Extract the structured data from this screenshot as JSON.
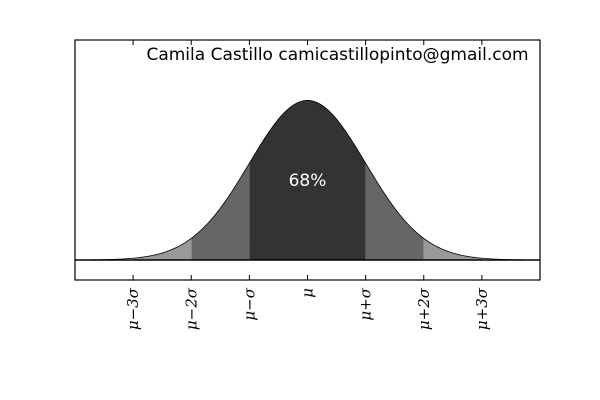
{
  "chart_data": {
    "type": "area",
    "title": "Camila Castillo camicastillopinto@gmail.com",
    "distribution": {
      "mean": 0,
      "sd": 1
    },
    "xlim": [
      -4,
      4
    ],
    "ylim": [
      -0.05,
      0.55
    ],
    "xlabel": "",
    "ylabel": "",
    "grid": false,
    "xticks": [
      {
        "value": -3,
        "label": "μ−3σ"
      },
      {
        "value": -2,
        "label": "μ−2σ"
      },
      {
        "value": -1,
        "label": "μ−σ"
      },
      {
        "value": 0,
        "label": "μ"
      },
      {
        "value": 1,
        "label": "μ+σ"
      },
      {
        "value": 2,
        "label": "μ+2σ"
      },
      {
        "value": 3,
        "label": "μ+3σ"
      }
    ],
    "bands": [
      {
        "from": -1,
        "to": 1,
        "color": "#333333"
      },
      {
        "from": -2,
        "to": -1,
        "color": "#666666"
      },
      {
        "from": 1,
        "to": 2,
        "color": "#666666"
      },
      {
        "from": -3,
        "to": -2,
        "color": "#999999"
      },
      {
        "from": 2,
        "to": 3,
        "color": "#999999"
      }
    ],
    "annotation": {
      "text": "68%",
      "x": 0,
      "y": 0.2
    },
    "colors": {
      "curve": "#000000",
      "baseline": "#000000",
      "annotation_text": "#ffffff"
    }
  }
}
